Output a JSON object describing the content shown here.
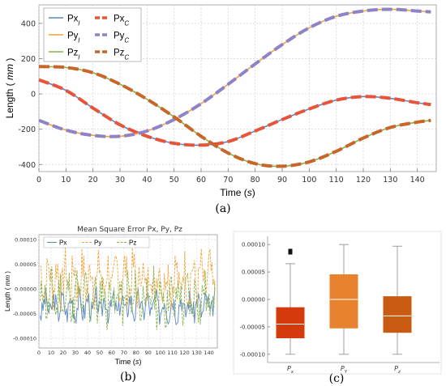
{
  "chart_data": [
    {
      "panel": "(a)",
      "type": "line",
      "title": "",
      "xlabel": "Time (s)",
      "ylabel": "Length ( mm )",
      "xlim": [
        0,
        147
      ],
      "ylim": [
        -440,
        505
      ],
      "xticks": [
        0,
        10,
        20,
        30,
        40,
        50,
        60,
        70,
        80,
        90,
        100,
        110,
        120,
        130,
        140
      ],
      "yticks": [
        -400,
        -200,
        0,
        200,
        400
      ],
      "grid": true,
      "legend": "top-left",
      "legend_entries": [
        {
          "sub": "l",
          "name": "Px",
          "color": "#5b87c4",
          "style": "solid"
        },
        {
          "sub": "C",
          "name": "Px",
          "color": "#e8543a",
          "style": "dashed"
        },
        {
          "sub": "l",
          "name": "Py",
          "color": "#f0a33c",
          "style": "solid"
        },
        {
          "sub": "C",
          "name": "Py",
          "color": "#8f82c6",
          "style": "dashed"
        },
        {
          "sub": "l",
          "name": "Pz",
          "color": "#86b04a",
          "style": "solid"
        },
        {
          "sub": "C",
          "name": "Pz",
          "color": "#c8662a",
          "style": "dashed"
        }
      ],
      "series": [
        {
          "name": "Px",
          "color": "#e8543a",
          "x": [
            0,
            10,
            20,
            30,
            40,
            50,
            60,
            70,
            80,
            90,
            100,
            110,
            120,
            130,
            140,
            145
          ],
          "y": [
            80,
            20,
            -80,
            -175,
            -240,
            -280,
            -290,
            -270,
            -210,
            -145,
            -85,
            -35,
            -15,
            -25,
            -50,
            -60
          ]
        },
        {
          "name": "Py",
          "color": "#8f82c6",
          "x": [
            0,
            10,
            20,
            30,
            40,
            50,
            60,
            70,
            80,
            90,
            100,
            110,
            120,
            130,
            140,
            145
          ],
          "y": [
            -150,
            -205,
            -235,
            -240,
            -210,
            -145,
            -55,
            55,
            170,
            280,
            375,
            440,
            470,
            480,
            470,
            465
          ]
        },
        {
          "name": "Pz",
          "color": "#c8662a",
          "x": [
            0,
            10,
            20,
            30,
            40,
            50,
            60,
            70,
            80,
            90,
            100,
            110,
            120,
            130,
            140,
            145
          ],
          "y": [
            155,
            150,
            120,
            55,
            -30,
            -130,
            -240,
            -335,
            -395,
            -410,
            -385,
            -325,
            -250,
            -190,
            -160,
            -150
          ]
        }
      ]
    },
    {
      "panel": "(b)",
      "type": "line",
      "title": "Mean Square Error Px, Py, Pz",
      "xlabel": "Time (s)",
      "ylabel": "Length ( mm )",
      "xlim": [
        0,
        147
      ],
      "ylim": [
        -0.00012,
        0.00011
      ],
      "xticks": [
        0,
        10,
        20,
        30,
        40,
        50,
        60,
        70,
        80,
        90,
        100,
        110,
        120,
        130,
        140
      ],
      "yticks": [
        -0.0001,
        -5e-05,
        0,
        5e-05,
        0.0001
      ],
      "ytick_labels": [
        "-0.00010",
        "-0.00005",
        "0.00000",
        "0.00005",
        "0.00010"
      ],
      "grid": true,
      "legend": "top",
      "series": [
        {
          "name": "Px",
          "color": "#5b87c4",
          "style": "solid",
          "x_start": 1,
          "x_end": 145,
          "bias": -3.5e-05,
          "spread": 4e-05,
          "seed": 3
        },
        {
          "name": "Py",
          "color": "#f0a33c",
          "style": "dashed",
          "x_start": 1,
          "x_end": 145,
          "bias": 2e-05,
          "spread": 7e-05,
          "seed": 7
        },
        {
          "name": "Pz",
          "color": "#86b04a",
          "style": "dashed",
          "x_start": 1,
          "x_end": 145,
          "bias": -2e-05,
          "spread": 7e-05,
          "seed": 11
        }
      ]
    },
    {
      "panel": "(c)",
      "type": "box",
      "title": "",
      "ylim": [
        -0.000115,
        0.000115
      ],
      "yticks": [
        -0.0001,
        -5e-05,
        0,
        5e-05,
        0.0001
      ],
      "ytick_labels": [
        "-0.00010",
        "-0.00005",
        "0.00000",
        "0.00005",
        "0.00010"
      ],
      "boxes": [
        {
          "label": "Px",
          "color": "#d43a0c",
          "min": -0.0001,
          "q1": -7e-05,
          "median": -4.5e-05,
          "q3": -1.5e-05,
          "max": 6.5e-05,
          "outliers": [
            8.7e-05
          ]
        },
        {
          "label": "PY",
          "color": "#e8822e",
          "min": -0.0001,
          "q1": -5.2e-05,
          "median": 0.0,
          "q3": 4.5e-05,
          "max": 0.0001,
          "outliers": []
        },
        {
          "label": "Pz",
          "color": "#c85a12",
          "min": -0.0001,
          "q1": -6e-05,
          "median": -3e-05,
          "q3": 5e-06,
          "max": 9.7e-05,
          "outliers": []
        }
      ]
    }
  ]
}
